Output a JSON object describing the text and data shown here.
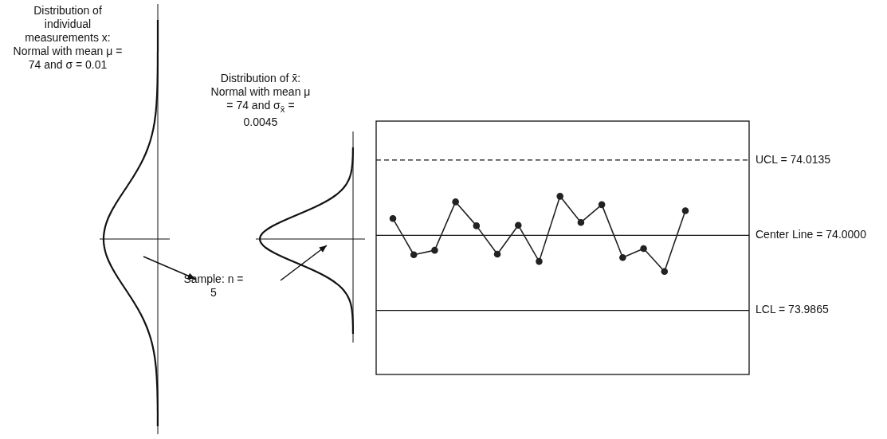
{
  "chart_data": {
    "type": "line",
    "categories": [
      null,
      null,
      null,
      null,
      null,
      null,
      null,
      null,
      null,
      null,
      null,
      null,
      null,
      null,
      null
    ],
    "values": [
      74.003,
      73.9965,
      73.9973,
      74.006,
      74.0017,
      73.9966,
      74.0018,
      73.9953,
      74.007,
      74.0023,
      74.0055,
      73.996,
      73.9976,
      73.9935,
      74.0044
    ],
    "color": "#222222",
    "marker": "circle",
    "ylim": [
      73.975,
      74.0205
    ],
    "tick_labels": "y",
    "yticks": [
      {
        "value": 74.0135,
        "label": "UCL = 74.0135"
      },
      {
        "value": 74.0,
        "label": "Center Line = 74.0000"
      },
      {
        "value": 73.9865,
        "label": "LCL = 73.9865"
      }
    ],
    "ref_lines": [
      {
        "axis": "y",
        "value": 74.0135,
        "line_style": "dashed"
      },
      {
        "axis": "y",
        "value": 74.0,
        "line_style": "solid"
      },
      {
        "axis": "y",
        "value": 73.9865,
        "line_style": "solid"
      }
    ],
    "annotations": [
      "Distribution of individual measurements x: Normal with mean μ = 74 and σ = 0.01",
      "Distribution of x̄: Normal with mean μ = 74 and σ$_{x̄}$ = 0.0045",
      "Sample: n = 5"
    ]
  }
}
